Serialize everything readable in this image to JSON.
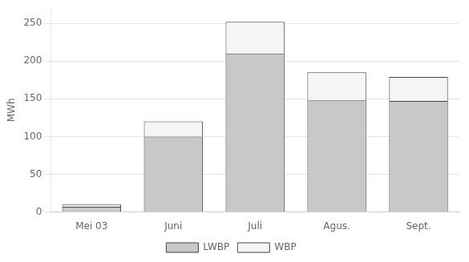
{
  "chart_data": {
    "type": "bar",
    "stacked": true,
    "y_label": "MWh",
    "categories": [
      "Mei 03",
      "Juni",
      "Juli",
      "Agus.",
      "Sept."
    ],
    "series": [
      {
        "name": "LWBP",
        "color": "#c8c8c8",
        "values": [
          7,
          100,
          210,
          148,
          147
        ]
      },
      {
        "name": "WBP",
        "color": "#f5f5f5",
        "values": [
          3,
          20,
          42,
          37,
          32
        ]
      }
    ],
    "ylim": [
      0,
      270
    ],
    "yticks": [
      0,
      50,
      100,
      150,
      200,
      250
    ],
    "grid": "y",
    "legend": "bottom"
  }
}
